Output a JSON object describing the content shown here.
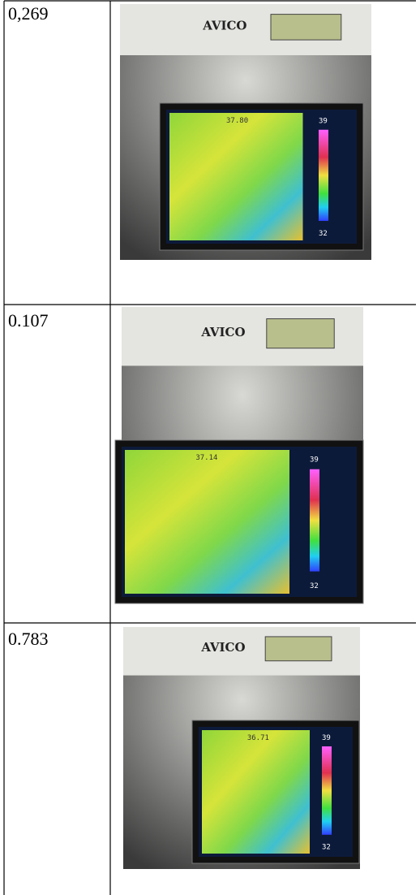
{
  "table": {
    "rows": [
      {
        "value": "0,269",
        "photo": {
          "brand": "AVICO",
          "reading": "37.80",
          "scale_max": "39",
          "scale_min": "32"
        }
      },
      {
        "value": "0.107",
        "photo": {
          "brand": "AVICO",
          "reading": "37.14",
          "scale_max": "39",
          "scale_min": "32"
        }
      },
      {
        "value": "0.783",
        "photo": {
          "brand": "AVICO",
          "reading": "36.71",
          "scale_max": "39",
          "scale_min": "32"
        }
      }
    ]
  }
}
